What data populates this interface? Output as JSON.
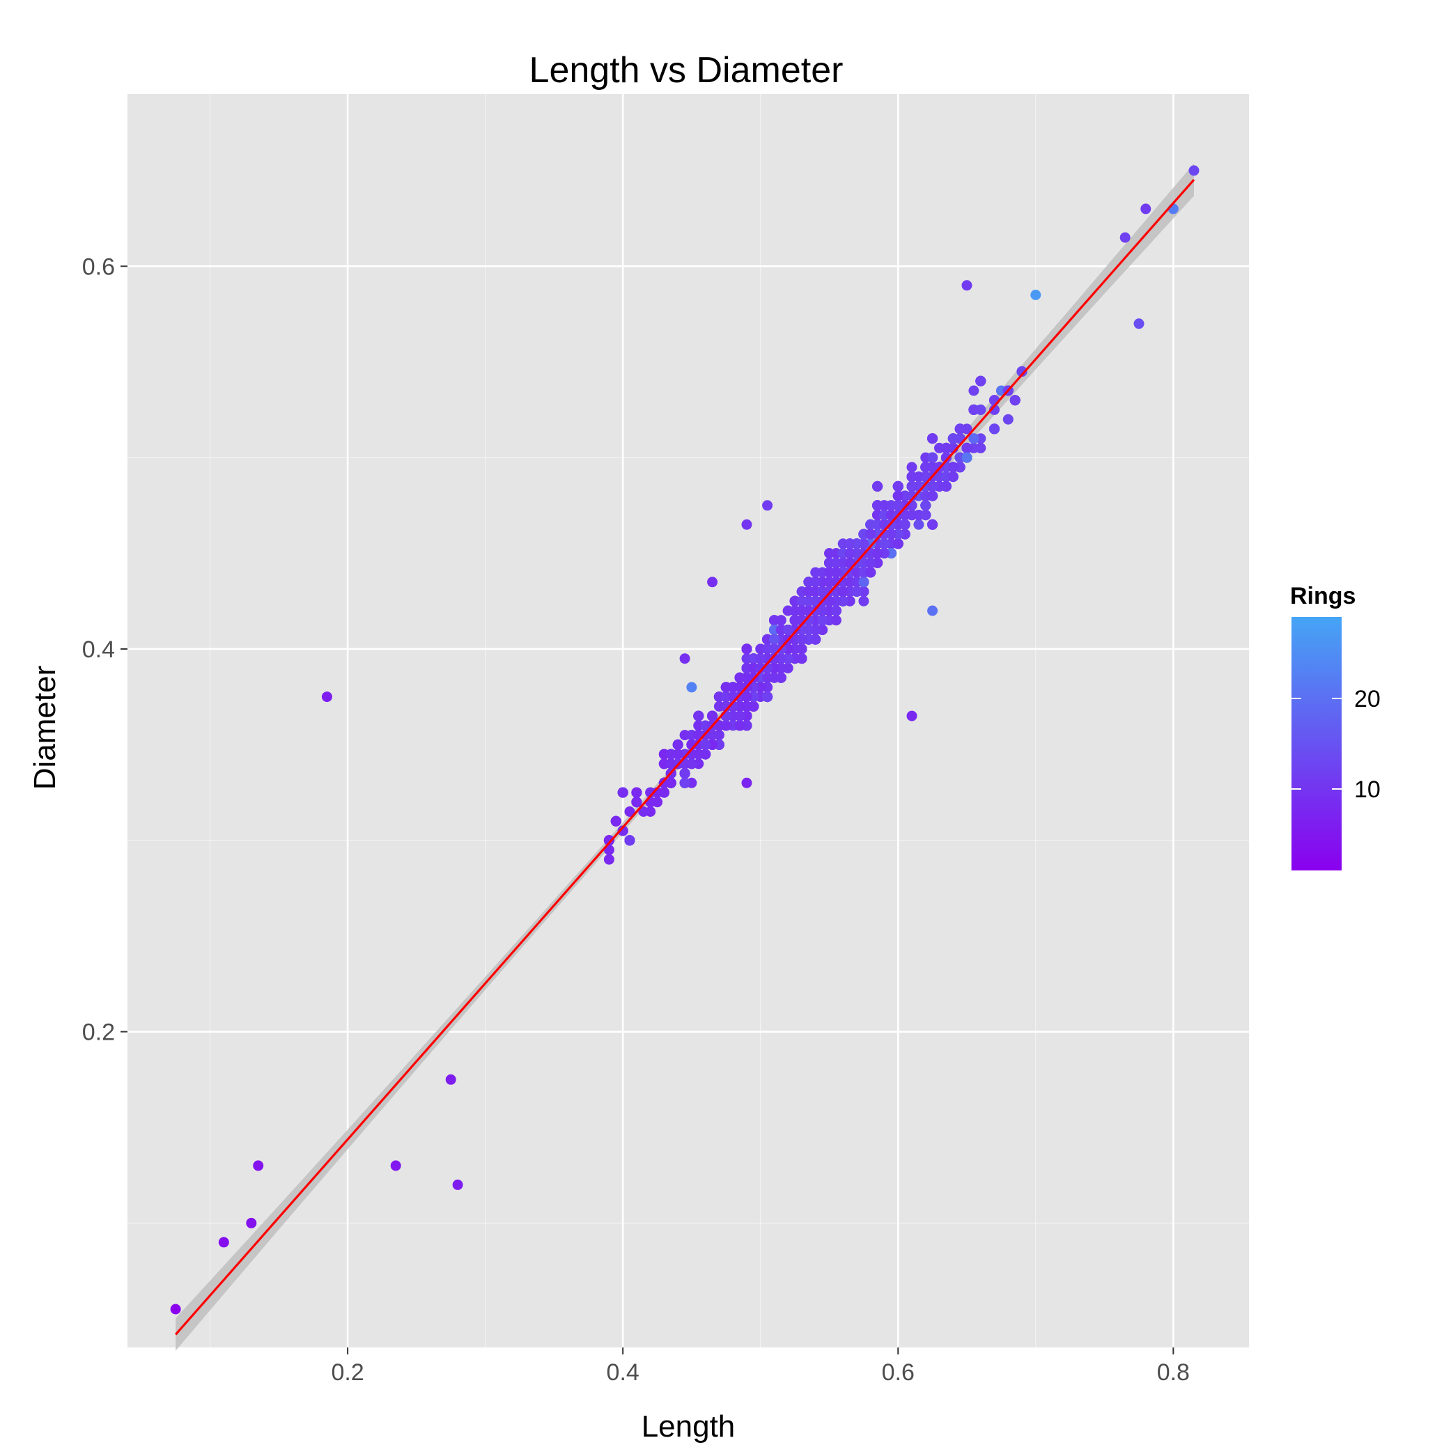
{
  "chart_data": {
    "type": "scatter",
    "title": "Length vs Diameter",
    "xlabel": "Length",
    "ylabel": "Diameter",
    "xlim": [
      0.04,
      0.855
    ],
    "ylim": [
      0.035,
      0.69
    ],
    "x_ticks": [
      0.2,
      0.4,
      0.6,
      0.8
    ],
    "y_ticks": [
      0.2,
      0.4,
      0.6
    ],
    "x_tick_labels": [
      "0.2",
      "0.4",
      "0.6",
      "0.8"
    ],
    "y_tick_labels": [
      "0.2",
      "0.4",
      "0.6"
    ],
    "grid": true,
    "colors": {
      "panel": "#e5e5e5",
      "grid": "#ffffff",
      "fit_line": "#ff0000",
      "confidence_band": "#bdbdbd",
      "scale_low": "#8a00ee",
      "scale_high": "#45a5f5"
    },
    "color_scale": {
      "title": "Rings",
      "variable": "Rings",
      "range": [
        1,
        29
      ],
      "breaks": [
        10,
        20
      ],
      "break_labels": [
        "10",
        "20"
      ],
      "legend_position": "right"
    },
    "fit_line": {
      "method": "linear",
      "slope": 0.8155,
      "intercept": -0.0194,
      "x_range": [
        0.075,
        0.815
      ],
      "confidence_band": true
    },
    "point_cloud": {
      "n": 4177,
      "x_range": [
        0.075,
        0.815
      ],
      "note": "points follow the fit line with spread growing with Length; colour encodes Rings"
    },
    "highlight_points": [
      {
        "x": 0.075,
        "y": 0.055,
        "rings": 1
      },
      {
        "x": 0.11,
        "y": 0.09,
        "rings": 3
      },
      {
        "x": 0.13,
        "y": 0.1,
        "rings": 4
      },
      {
        "x": 0.135,
        "y": 0.13,
        "rings": 4
      },
      {
        "x": 0.185,
        "y": 0.375,
        "rings": 6
      },
      {
        "x": 0.235,
        "y": 0.13,
        "rings": 5
      },
      {
        "x": 0.28,
        "y": 0.12,
        "rings": 6
      },
      {
        "x": 0.275,
        "y": 0.175,
        "rings": 6
      },
      {
        "x": 0.465,
        "y": 0.435,
        "rings": 9
      },
      {
        "x": 0.445,
        "y": 0.395,
        "rings": 9
      },
      {
        "x": 0.49,
        "y": 0.465,
        "rings": 10
      },
      {
        "x": 0.505,
        "y": 0.475,
        "rings": 11
      },
      {
        "x": 0.61,
        "y": 0.365,
        "rings": 8
      },
      {
        "x": 0.625,
        "y": 0.42,
        "rings": 20
      },
      {
        "x": 0.45,
        "y": 0.38,
        "rings": 23
      },
      {
        "x": 0.49,
        "y": 0.33,
        "rings": 7
      },
      {
        "x": 0.65,
        "y": 0.59,
        "rings": 11
      },
      {
        "x": 0.7,
        "y": 0.585,
        "rings": 27
      },
      {
        "x": 0.765,
        "y": 0.615,
        "rings": 12
      },
      {
        "x": 0.775,
        "y": 0.57,
        "rings": 14
      },
      {
        "x": 0.78,
        "y": 0.63,
        "rings": 11
      },
      {
        "x": 0.8,
        "y": 0.63,
        "rings": 22
      },
      {
        "x": 0.815,
        "y": 0.65,
        "rings": 13
      }
    ]
  }
}
